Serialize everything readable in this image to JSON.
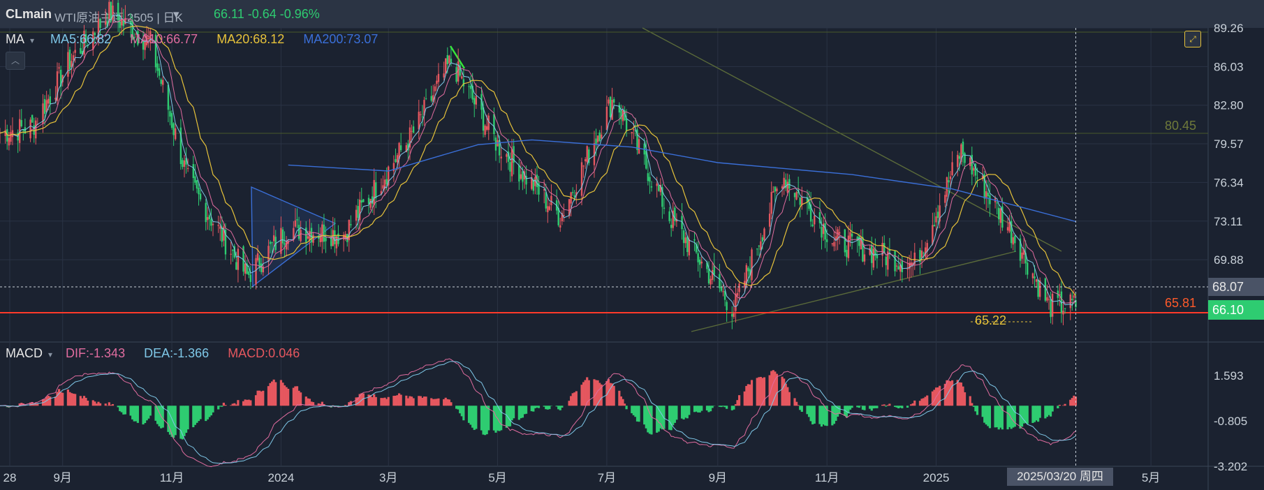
{
  "header": {
    "symbol": "CLmain",
    "name": "WTI原油主连 2505 | 日K",
    "quote": "66.11 -0.64 -0.96%"
  },
  "price_legend": {
    "indicator": "MA",
    "ma5": "MA5:66.82",
    "ma10": "MA10:66.77",
    "ma20": "MA20:68.12",
    "ma200": "MA200:73.07"
  },
  "macd_legend": {
    "indicator": "MACD",
    "dif": "DIF:-1.343",
    "dea": "DEA:-1.366",
    "macd": "MACD:0.046"
  },
  "annotations": {
    "crosshair_date": "2025/03/20 周四",
    "crosshair_price": "68.07",
    "last_price": "66.10",
    "level_65_81": "65.81",
    "level_80_45": "80.45",
    "low_65_22": "65.22"
  },
  "colors": {
    "background": "#1b2230",
    "up": "#e5575f",
    "down": "#2ecc71",
    "ma5": "#7fc8e8",
    "ma10": "#e06c9f",
    "ma20": "#e6c23a",
    "ma200": "#3a6fd8",
    "grid": "#2a3344"
  },
  "chart_data": [
    {
      "type": "candlestick",
      "title": "WTI原油主连 2505",
      "y_ticks": [
        89.26,
        86.03,
        82.8,
        79.57,
        76.34,
        73.11,
        69.88
      ],
      "ylim": [
        63.0,
        89.26
      ],
      "x_ticks": [
        "28",
        "9月",
        "11月",
        "2024",
        "3月",
        "5月",
        "7月",
        "9月",
        "11月",
        "2025",
        "5月"
      ],
      "x_range": [
        "2023-07-28",
        "2025-05-31"
      ],
      "close_path": [
        {
          "date": "2023-07-28",
          "close": 80.5
        },
        {
          "date": "2023-08-15",
          "close": 81.0
        },
        {
          "date": "2023-09-05",
          "close": 86.5
        },
        {
          "date": "2023-09-27",
          "close": 90.5
        },
        {
          "date": "2023-10-20",
          "close": 88.0
        },
        {
          "date": "2023-11-10",
          "close": 76.5
        },
        {
          "date": "2023-12-13",
          "close": 68.5
        },
        {
          "date": "2024-01-05",
          "close": 72.5
        },
        {
          "date": "2024-02-05",
          "close": 72.0
        },
        {
          "date": "2024-03-15",
          "close": 80.5
        },
        {
          "date": "2024-04-05",
          "close": 86.5
        },
        {
          "date": "2024-05-01",
          "close": 79.5
        },
        {
          "date": "2024-06-05",
          "close": 73.5
        },
        {
          "date": "2024-07-05",
          "close": 83.5
        },
        {
          "date": "2024-08-05",
          "close": 73.5
        },
        {
          "date": "2024-09-10",
          "close": 65.7
        },
        {
          "date": "2024-10-07",
          "close": 77.0
        },
        {
          "date": "2024-11-05",
          "close": 71.5
        },
        {
          "date": "2024-12-20",
          "close": 69.5
        },
        {
          "date": "2025-01-15",
          "close": 79.0
        },
        {
          "date": "2025-02-15",
          "close": 71.5
        },
        {
          "date": "2025-03-05",
          "close": 66.0
        },
        {
          "date": "2025-03-20",
          "close": 66.1
        }
      ],
      "series": [
        {
          "name": "MA5",
          "last": 66.82
        },
        {
          "name": "MA10",
          "last": 66.77
        },
        {
          "name": "MA20",
          "last": 68.12
        },
        {
          "name": "MA200",
          "last": 73.07,
          "values": [
            {
              "date": "2024-01-05",
              "value": 77.8
            },
            {
              "date": "2024-03-01",
              "value": 77.3
            },
            {
              "date": "2024-04-20",
              "value": 79.5
            },
            {
              "date": "2024-05-20",
              "value": 79.9
            },
            {
              "date": "2024-07-15",
              "value": 79.3
            },
            {
              "date": "2024-09-01",
              "value": 78.0
            },
            {
              "date": "2024-11-15",
              "value": 77.0
            },
            {
              "date": "2025-01-10",
              "value": 75.8
            },
            {
              "date": "2025-03-20",
              "value": 73.07
            }
          ]
        }
      ],
      "levels": [
        80.45,
        65.81,
        65.22
      ]
    },
    {
      "type": "bar",
      "title": "MACD",
      "y_ticks": [
        1.593,
        -0.805,
        -3.202
      ],
      "ylim": [
        -3.202,
        3.0
      ],
      "series": [
        {
          "name": "DIF",
          "last": -1.343
        },
        {
          "name": "DEA",
          "last": -1.366
        },
        {
          "name": "MACD",
          "last": 0.046
        }
      ]
    }
  ]
}
